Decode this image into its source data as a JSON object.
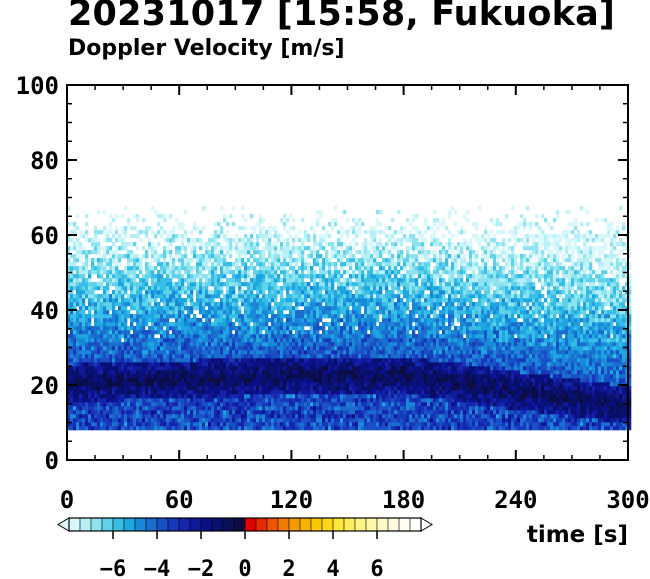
{
  "header": {
    "title": "20231017 [15:58, Fukuoka]",
    "subtitle": "Doppler Velocity [m/s]"
  },
  "chart_data": {
    "type": "heatmap",
    "title": "20231017 [15:58, Fukuoka]",
    "subtitle": "Doppler Velocity [m/s]",
    "xlabel": "time [s]",
    "ylabel": "",
    "xlim": [
      0,
      300
    ],
    "ylim": [
      0,
      100
    ],
    "xticks": [
      "0",
      "60",
      "120",
      "180",
      "240",
      "300"
    ],
    "yticks": [
      "0",
      "20",
      "40",
      "60",
      "80",
      "100"
    ],
    "data_range_y": [
      8,
      67
    ],
    "band_center_y": [
      {
        "x": 0,
        "y": 20
      },
      {
        "x": 60,
        "y": 21
      },
      {
        "x": 120,
        "y": 22
      },
      {
        "x": 180,
        "y": 22
      },
      {
        "x": 240,
        "y": 18
      },
      {
        "x": 300,
        "y": 14
      }
    ],
    "colorbar": {
      "range": [
        -8,
        8
      ],
      "tick_values": [
        -6,
        -4,
        -2,
        0,
        2,
        4,
        6
      ],
      "tick_labels": [
        "−6",
        "−4",
        "−2",
        "0",
        "2",
        "4",
        "6"
      ],
      "colors": [
        "#d8f7fb",
        "#b6eff6",
        "#8de4f0",
        "#5fd2ea",
        "#38bde6",
        "#1ea6e0",
        "#1a88d8",
        "#1a6ccf",
        "#1a50c6",
        "#1838bb",
        "#1525ad",
        "#10189c",
        "#0b1086",
        "#08106e",
        "#0a1058",
        "#0c0c40",
        "#e00000",
        "#e82a00",
        "#ee5500",
        "#f27b00",
        "#f59b00",
        "#f8b400",
        "#fbc800",
        "#fcd818",
        "#fde63a",
        "#feee5e",
        "#fff484",
        "#fff8a6",
        "#fffbc4",
        "#fffde0",
        "#fffef0",
        "#ffffff"
      ]
    }
  }
}
